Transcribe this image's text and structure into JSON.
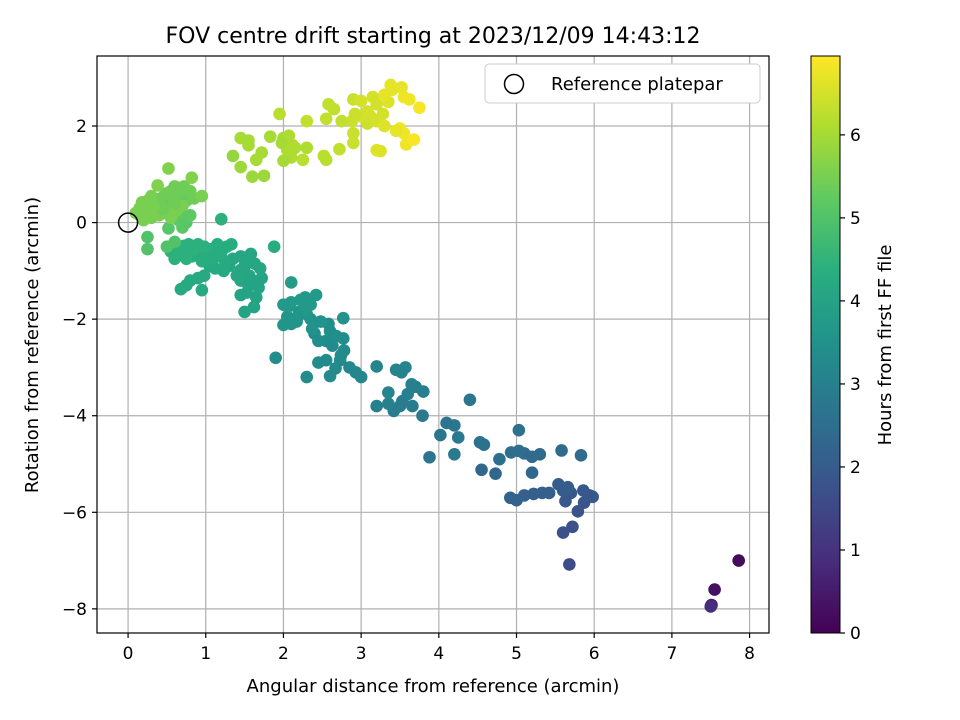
{
  "chart_data": {
    "type": "scatter",
    "title": "FOV centre drift starting at 2023/12/09 14:43:12",
    "xlabel": "Angular distance from reference (arcmin)",
    "ylabel": "Rotation from reference (arcmin)",
    "xlim": [
      -0.4,
      8.25
    ],
    "ylim": [
      -8.5,
      3.45
    ],
    "xticks": [
      0,
      1,
      2,
      3,
      4,
      5,
      6,
      7,
      8
    ],
    "yticks": [
      -8,
      -6,
      -4,
      -2,
      0,
      2
    ],
    "grid": true,
    "legend": {
      "position": "top-right",
      "label": "Reference platepar"
    },
    "reference_point": {
      "x": 0,
      "y": 0
    },
    "colorbar": {
      "label": "Hours from first FF file",
      "range": [
        0,
        6.95
      ],
      "ticks": [
        0,
        1,
        2,
        3,
        4,
        5,
        6
      ],
      "colormap": "viridis"
    },
    "points": [
      [
        7.51,
        -7.92,
        0.5
      ],
      [
        7.55,
        -7.6,
        0.3
      ],
      [
        7.86,
        -7.0,
        0.2
      ],
      [
        7.5,
        -7.95,
        0.9
      ],
      [
        5.68,
        -7.08,
        1.6
      ],
      [
        5.6,
        -6.42,
        1.7
      ],
      [
        5.72,
        -6.3,
        1.7
      ],
      [
        5.79,
        -5.98,
        1.8
      ],
      [
        5.87,
        -5.8,
        1.8
      ],
      [
        5.63,
        -5.77,
        1.9
      ],
      [
        5.98,
        -5.68,
        1.9
      ],
      [
        5.7,
        -5.6,
        1.9
      ],
      [
        5.6,
        -5.55,
        2.0
      ],
      [
        5.66,
        -5.48,
        2.0
      ],
      [
        5.54,
        -5.42,
        2.0
      ],
      [
        5.86,
        -5.55,
        1.9
      ],
      [
        5.94,
        -5.65,
        1.9
      ],
      [
        5.42,
        -5.6,
        2.1
      ],
      [
        5.33,
        -5.6,
        2.1
      ],
      [
        5.22,
        -5.62,
        2.1
      ],
      [
        5.1,
        -5.65,
        2.1
      ],
      [
        5.0,
        -5.75,
        2.2
      ],
      [
        4.92,
        -5.7,
        2.2
      ],
      [
        5.2,
        -5.18,
        2.3
      ],
      [
        4.73,
        -5.2,
        2.3
      ],
      [
        4.55,
        -5.12,
        2.3
      ],
      [
        5.58,
        -4.72,
        2.4
      ],
      [
        5.83,
        -4.82,
        2.4
      ],
      [
        5.3,
        -4.8,
        2.4
      ],
      [
        5.2,
        -4.85,
        2.4
      ],
      [
        5.1,
        -4.78,
        2.4
      ],
      [
        5.03,
        -4.73,
        2.5
      ],
      [
        4.93,
        -4.76,
        2.5
      ],
      [
        4.78,
        -4.9,
        2.5
      ],
      [
        4.58,
        -4.6,
        2.6
      ],
      [
        4.53,
        -4.55,
        2.6
      ],
      [
        5.03,
        -4.3,
        2.6
      ],
      [
        4.4,
        -3.67,
        2.7
      ],
      [
        4.2,
        -4.2,
        2.7
      ],
      [
        4.1,
        -4.15,
        2.7
      ],
      [
        4.02,
        -4.4,
        2.7
      ],
      [
        4.25,
        -4.45,
        2.8
      ],
      [
        4.2,
        -4.8,
        2.8
      ],
      [
        3.88,
        -4.86,
        2.7
      ],
      [
        3.79,
        -4.0,
        2.8
      ],
      [
        3.66,
        -3.8,
        2.9
      ],
      [
        3.53,
        -3.7,
        2.9
      ],
      [
        3.42,
        -3.9,
        2.9
      ],
      [
        3.35,
        -3.75,
        3.0
      ],
      [
        3.5,
        -3.8,
        2.9
      ],
      [
        3.6,
        -3.55,
        3.0
      ],
      [
        3.7,
        -3.4,
        3.0
      ],
      [
        3.8,
        -3.5,
        3.0
      ],
      [
        3.65,
        -3.35,
        3.0
      ],
      [
        3.52,
        -3.1,
        3.1
      ],
      [
        3.45,
        -3.05,
        3.1
      ],
      [
        3.57,
        -3.0,
        3.1
      ],
      [
        3.2,
        -3.8,
        3.0
      ],
      [
        3.2,
        -2.98,
        3.1
      ],
      [
        3.35,
        -3.52,
        3.1
      ],
      [
        3.0,
        -3.2,
        3.2
      ],
      [
        2.93,
        -3.1,
        3.2
      ],
      [
        2.85,
        -3.0,
        3.2
      ],
      [
        2.73,
        -2.85,
        3.3
      ],
      [
        2.78,
        -2.65,
        3.3
      ],
      [
        2.63,
        -2.55,
        3.3
      ],
      [
        2.55,
        -2.45,
        3.3
      ],
      [
        2.68,
        -2.35,
        3.4
      ],
      [
        2.6,
        -2.25,
        3.4
      ],
      [
        2.58,
        -2.1,
        3.4
      ],
      [
        2.74,
        -2.75,
        3.3
      ],
      [
        2.67,
        -3.02,
        3.3
      ],
      [
        2.55,
        -2.85,
        3.3
      ],
      [
        2.45,
        -2.9,
        3.3
      ],
      [
        2.3,
        -3.2,
        3.3
      ],
      [
        2.6,
        -3.18,
        3.3
      ],
      [
        1.9,
        -2.8,
        3.4
      ],
      [
        2.77,
        -1.98,
        3.5
      ],
      [
        2.77,
        -2.4,
        3.4
      ],
      [
        2.48,
        -2.05,
        3.5
      ],
      [
        2.35,
        -2.0,
        3.5
      ],
      [
        2.4,
        -2.3,
        3.4
      ],
      [
        2.45,
        -2.45,
        3.4
      ],
      [
        2.37,
        -2.2,
        3.5
      ],
      [
        2.3,
        -1.9,
        3.6
      ],
      [
        2.2,
        -1.85,
        3.6
      ],
      [
        2.17,
        -2.05,
        3.6
      ],
      [
        2.1,
        -2.1,
        3.6
      ],
      [
        2.05,
        -1.95,
        3.6
      ],
      [
        2.0,
        -2.12,
        3.6
      ],
      [
        2.07,
        -1.73,
        3.7
      ],
      [
        2.1,
        -1.65,
        3.7
      ],
      [
        2.22,
        -1.6,
        3.7
      ],
      [
        2.28,
        -1.55,
        3.7
      ],
      [
        2.35,
        -1.7,
        3.7
      ],
      [
        2.42,
        -1.5,
        3.7
      ],
      [
        2.27,
        -1.8,
        3.7
      ],
      [
        2.0,
        -1.7,
        3.7
      ],
      [
        2.1,
        -1.24,
        3.8
      ],
      [
        2.18,
        -1.95,
        3.6
      ],
      [
        1.65,
        -1.55,
        4.0
      ],
      [
        1.5,
        -1.85,
        4.0
      ],
      [
        1.62,
        -1.75,
        4.0
      ],
      [
        1.45,
        -1.5,
        4.0
      ],
      [
        1.53,
        -1.45,
        4.0
      ],
      [
        1.68,
        -1.35,
        4.0
      ],
      [
        1.72,
        -1.15,
        4.0
      ],
      [
        1.56,
        -1.1,
        4.1
      ],
      [
        1.45,
        -1.2,
        4.1
      ],
      [
        1.4,
        -1.1,
        4.1
      ],
      [
        1.55,
        -1.3,
        4.0
      ],
      [
        1.7,
        -0.95,
        4.1
      ],
      [
        1.63,
        -0.85,
        4.1
      ],
      [
        1.5,
        -0.9,
        4.1
      ],
      [
        1.35,
        -0.75,
        4.1
      ],
      [
        1.45,
        -0.7,
        4.1
      ],
      [
        1.58,
        -0.65,
        4.1
      ],
      [
        1.52,
        -0.8,
        4.1
      ],
      [
        1.3,
        -0.9,
        4.1
      ],
      [
        1.25,
        -0.8,
        4.2
      ],
      [
        1.23,
        -1.0,
        4.2
      ],
      [
        1.12,
        -0.95,
        4.2
      ],
      [
        1.05,
        -0.9,
        4.2
      ],
      [
        0.98,
        -1.1,
        4.2
      ],
      [
        0.95,
        -1.4,
        4.2
      ],
      [
        0.75,
        -1.3,
        4.2
      ],
      [
        0.8,
        -1.2,
        4.2
      ],
      [
        0.9,
        -1.15,
        4.2
      ],
      [
        0.68,
        -1.38,
        4.2
      ],
      [
        1.88,
        -0.5,
        4.3
      ],
      [
        1.15,
        -0.45,
        4.3
      ],
      [
        1.07,
        -0.55,
        4.3
      ],
      [
        1.0,
        -0.6,
        4.3
      ],
      [
        1.02,
        -0.75,
        4.3
      ],
      [
        1.08,
        -0.7,
        4.3
      ],
      [
        0.93,
        -0.55,
        4.3
      ],
      [
        0.88,
        -0.65,
        4.3
      ],
      [
        0.82,
        -0.7,
        4.3
      ],
      [
        0.75,
        -0.75,
        4.4
      ],
      [
        0.7,
        -0.6,
        4.4
      ],
      [
        0.65,
        -0.5,
        4.4
      ],
      [
        0.6,
        -0.75,
        4.4
      ],
      [
        0.55,
        -0.6,
        4.4
      ],
      [
        1.2,
        -0.62,
        4.3
      ],
      [
        0.9,
        -0.45,
        4.4
      ],
      [
        0.98,
        -0.5,
        4.4
      ],
      [
        1.33,
        -0.45,
        4.3
      ],
      [
        1.27,
        -0.5,
        4.3
      ],
      [
        1.2,
        0.07,
        4.4
      ],
      [
        0.78,
        -0.45,
        4.4
      ],
      [
        0.84,
        -0.55,
        4.4
      ],
      [
        0.72,
        -0.48,
        4.4
      ],
      [
        0.66,
        -0.63,
        4.4
      ],
      [
        0.95,
        -0.8,
        4.3
      ],
      [
        1.1,
        -0.75,
        4.3
      ],
      [
        1.45,
        -0.98,
        4.1
      ],
      [
        1.6,
        -1.2,
        4.0
      ],
      [
        0.25,
        -0.3,
        5.0
      ],
      [
        0.25,
        -0.55,
        5.0
      ],
      [
        0.5,
        -0.5,
        5.0
      ],
      [
        0.6,
        -0.4,
        5.0
      ],
      [
        0.52,
        -0.12,
        5.1
      ],
      [
        0.7,
        -0.1,
        5.1
      ],
      [
        0.65,
        0.05,
        5.2
      ],
      [
        0.75,
        0.0,
        5.1
      ],
      [
        0.8,
        0.15,
        5.2
      ],
      [
        0.7,
        0.2,
        5.2
      ],
      [
        0.62,
        0.3,
        5.2
      ],
      [
        0.55,
        0.35,
        5.3
      ],
      [
        0.5,
        0.45,
        5.3
      ],
      [
        0.45,
        0.4,
        5.3
      ],
      [
        0.6,
        0.5,
        5.3
      ],
      [
        0.68,
        0.55,
        5.4
      ],
      [
        0.75,
        0.45,
        5.3
      ],
      [
        0.85,
        0.5,
        5.4
      ],
      [
        0.8,
        0.65,
        5.4
      ],
      [
        0.72,
        0.75,
        5.4
      ],
      [
        0.6,
        0.75,
        5.4
      ],
      [
        0.55,
        0.65,
        5.4
      ],
      [
        0.48,
        0.6,
        5.4
      ],
      [
        0.42,
        0.5,
        5.4
      ],
      [
        0.35,
        0.4,
        5.4
      ],
      [
        0.3,
        0.55,
        5.5
      ],
      [
        0.25,
        0.45,
        5.5
      ],
      [
        0.2,
        0.38,
        5.5
      ],
      [
        0.15,
        0.3,
        5.5
      ],
      [
        0.1,
        0.2,
        5.5
      ],
      [
        0.15,
        0.15,
        5.5
      ],
      [
        0.2,
        0.05,
        5.5
      ],
      [
        0.25,
        0.25,
        5.5
      ],
      [
        0.3,
        0.1,
        5.5
      ],
      [
        0.4,
        0.15,
        5.5
      ],
      [
        0.5,
        0.2,
        5.5
      ],
      [
        0.55,
        0.1,
        5.5
      ],
      [
        0.62,
        0.25,
        5.5
      ],
      [
        0.7,
        0.35,
        5.5
      ],
      [
        0.38,
        0.77,
        5.6
      ],
      [
        0.52,
        1.12,
        5.6
      ],
      [
        0.82,
        0.93,
        5.6
      ],
      [
        0.95,
        0.55,
        5.5
      ],
      [
        0.6,
        0.4,
        5.4
      ],
      [
        0.45,
        0.28,
        5.4
      ],
      [
        0.32,
        0.32,
        5.5
      ],
      [
        0.22,
        0.2,
        5.5
      ],
      [
        0.18,
        0.42,
        5.5
      ],
      [
        1.35,
        1.38,
        5.8
      ],
      [
        1.45,
        1.15,
        5.9
      ],
      [
        1.6,
        0.95,
        5.9
      ],
      [
        1.75,
        0.97,
        5.9
      ],
      [
        1.65,
        1.3,
        6.0
      ],
      [
        1.72,
        1.45,
        6.0
      ],
      [
        1.55,
        1.6,
        6.0
      ],
      [
        1.45,
        1.75,
        6.0
      ],
      [
        1.55,
        1.7,
        6.0
      ],
      [
        1.83,
        1.78,
        6.0
      ],
      [
        2.0,
        1.75,
        6.0
      ],
      [
        2.07,
        1.8,
        6.1
      ],
      [
        2.15,
        1.55,
        6.1
      ],
      [
        2.05,
        1.5,
        6.1
      ],
      [
        1.98,
        1.65,
        6.0
      ],
      [
        2.1,
        1.35,
        6.1
      ],
      [
        2.0,
        1.28,
        6.0
      ],
      [
        2.25,
        1.3,
        6.2
      ],
      [
        2.3,
        1.55,
        6.1
      ],
      [
        2.12,
        1.6,
        6.1
      ],
      [
        2.55,
        1.3,
        6.2
      ],
      [
        2.52,
        1.38,
        6.2
      ],
      [
        2.3,
        2.1,
        6.3
      ],
      [
        1.95,
        2.25,
        6.2
      ],
      [
        2.55,
        2.15,
        6.3
      ],
      [
        2.72,
        1.52,
        6.3
      ],
      [
        2.9,
        1.65,
        6.4
      ],
      [
        2.9,
        1.85,
        6.4
      ],
      [
        3.08,
        2.05,
        6.4
      ],
      [
        2.88,
        2.1,
        6.4
      ],
      [
        3.0,
        2.2,
        6.5
      ],
      [
        3.08,
        2.3,
        6.5
      ],
      [
        2.9,
        2.55,
        6.4
      ],
      [
        3.0,
        2.52,
        6.5
      ],
      [
        2.65,
        2.35,
        6.3
      ],
      [
        2.58,
        2.45,
        6.3
      ],
      [
        3.15,
        2.6,
        6.5
      ],
      [
        3.2,
        2.45,
        6.5
      ],
      [
        3.12,
        2.2,
        6.5
      ],
      [
        3.2,
        2.1,
        6.5
      ],
      [
        3.28,
        2.25,
        6.5
      ],
      [
        3.3,
        2.0,
        6.6
      ],
      [
        3.35,
        2.5,
        6.6
      ],
      [
        3.38,
        2.85,
        6.7
      ],
      [
        3.4,
        2.75,
        6.7
      ],
      [
        3.3,
        2.65,
        6.7
      ],
      [
        3.52,
        2.8,
        6.7
      ],
      [
        3.55,
        2.6,
        6.8
      ],
      [
        3.62,
        2.55,
        6.8
      ],
      [
        3.75,
        2.38,
        6.9
      ],
      [
        3.5,
        1.95,
        6.8
      ],
      [
        3.55,
        1.85,
        6.8
      ],
      [
        3.58,
        1.62,
        6.8
      ],
      [
        3.68,
        1.72,
        6.9
      ],
      [
        3.25,
        1.48,
        6.6
      ],
      [
        3.2,
        1.5,
        6.6
      ],
      [
        2.75,
        2.1,
        6.3
      ],
      [
        2.92,
        2.25,
        6.4
      ],
      [
        3.45,
        1.9,
        6.7
      ]
    ]
  }
}
